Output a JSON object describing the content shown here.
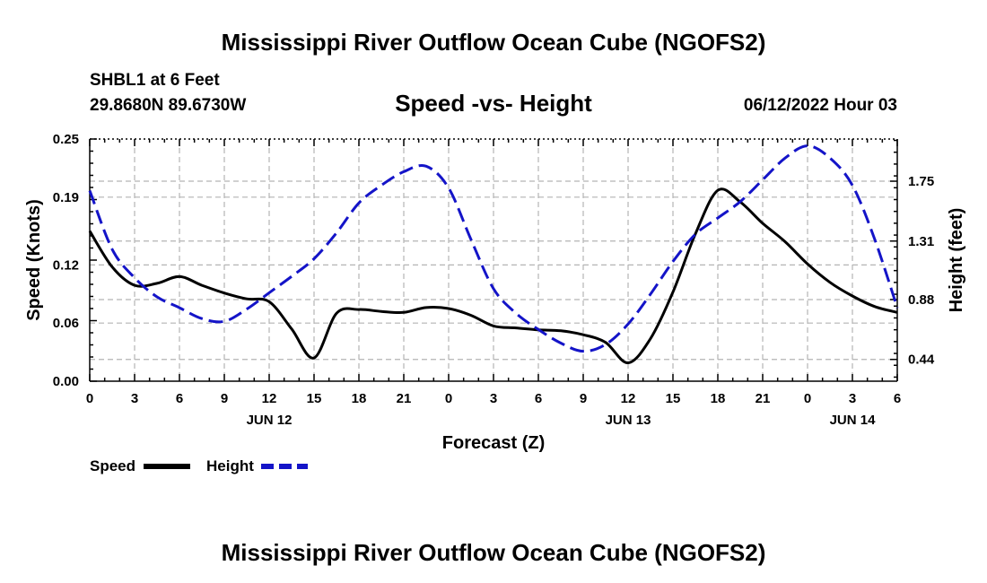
{
  "page": {
    "title": "Mississippi River Outflow Ocean Cube (NGOFS2)",
    "station": "SHBL1 at 6 Feet",
    "coords": "29.8680N  89.6730W",
    "datetime": "06/12/2022 Hour 03",
    "footer_title": "Mississippi River Outflow Ocean Cube (NGOFS2)"
  },
  "chart_data": {
    "type": "line",
    "title": "Speed -vs- Height",
    "xlabel": "Forecast (Z)",
    "ylabel": "Speed (Knots)",
    "y2label": "Height (feet)",
    "xlim": [
      0,
      54
    ],
    "ylim": [
      0,
      0.25
    ],
    "y2lim": [
      0.28,
      2.06
    ],
    "x_ticks": [
      0,
      3,
      6,
      9,
      12,
      15,
      18,
      21,
      24,
      27,
      30,
      33,
      36,
      39,
      42,
      45,
      48,
      51,
      54
    ],
    "x_tick_labels": [
      "0",
      "3",
      "6",
      "9",
      "12",
      "15",
      "18",
      "21",
      "0",
      "3",
      "6",
      "9",
      "12",
      "15",
      "18",
      "21",
      "0",
      "3",
      "6"
    ],
    "day_labels": [
      {
        "x": 12,
        "label": "JUN 12"
      },
      {
        "x": 36,
        "label": "JUN 13"
      },
      {
        "x": 51,
        "label": "JUN 14"
      }
    ],
    "y_ticks": [
      0.0,
      0.06,
      0.12,
      0.19,
      0.25
    ],
    "y_tick_labels": [
      "0.00",
      "0.06",
      "0.12",
      "0.19",
      "0.25"
    ],
    "y2_ticks": [
      0.44,
      0.88,
      1.31,
      1.75
    ],
    "y2_tick_labels": [
      "0.44",
      "0.88",
      "1.31",
      "1.75"
    ],
    "legend": [
      {
        "name": "Speed",
        "color": "#000000",
        "dashed": false
      },
      {
        "name": "Height",
        "color": "#1414c8",
        "dashed": true
      }
    ],
    "series": [
      {
        "name": "Speed",
        "axis": "left",
        "color": "#000000",
        "x": [
          0,
          1.5,
          3,
          4.5,
          6,
          7.5,
          9,
          10.5,
          12,
          13.5,
          15,
          16.5,
          18,
          19.5,
          21,
          22.5,
          24,
          25.5,
          27,
          28.5,
          30,
          31.5,
          33,
          34.5,
          36,
          37.5,
          39,
          40.5,
          42,
          43.5,
          45,
          46.5,
          48,
          49.5,
          51,
          52.5,
          54
        ],
        "values": [
          0.155,
          0.118,
          0.099,
          0.101,
          0.108,
          0.099,
          0.091,
          0.085,
          0.082,
          0.054,
          0.024,
          0.07,
          0.074,
          0.072,
          0.071,
          0.076,
          0.075,
          0.068,
          0.057,
          0.055,
          0.053,
          0.052,
          0.048,
          0.04,
          0.019,
          0.044,
          0.092,
          0.152,
          0.197,
          0.185,
          0.163,
          0.144,
          0.121,
          0.102,
          0.088,
          0.077,
          0.071
        ]
      },
      {
        "name": "Height",
        "axis": "right",
        "color": "#1414c8",
        "x": [
          0,
          1.5,
          3,
          4.5,
          6,
          7.5,
          9,
          10.5,
          12,
          13.5,
          15,
          16.5,
          18,
          19.5,
          21,
          22.5,
          24,
          25.5,
          27,
          28.5,
          30,
          31.5,
          33,
          34.5,
          36,
          37.5,
          39,
          40.5,
          42,
          43.5,
          45,
          46.5,
          48,
          49.5,
          51,
          52.5,
          54
        ],
        "values": [
          1.68,
          1.25,
          1.04,
          0.9,
          0.82,
          0.74,
          0.72,
          0.81,
          0.93,
          1.05,
          1.18,
          1.37,
          1.59,
          1.72,
          1.82,
          1.86,
          1.7,
          1.32,
          0.96,
          0.78,
          0.66,
          0.56,
          0.5,
          0.55,
          0.7,
          0.92,
          1.16,
          1.36,
          1.48,
          1.6,
          1.76,
          1.92,
          2.01,
          1.92,
          1.72,
          1.32,
          0.82
        ]
      }
    ]
  }
}
